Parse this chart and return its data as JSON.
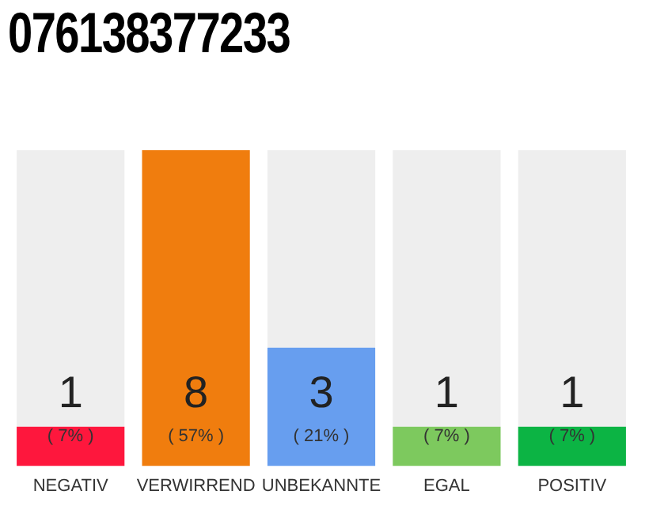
{
  "chart_data": {
    "type": "bar",
    "title": "076138377233",
    "stacked": true,
    "categories": [
      "NEGATIV",
      "VERWIRREND",
      "UNBEKANNTE",
      "EGAL",
      "POSITIV"
    ],
    "series": [
      {
        "colors": [
          "#fe173d",
          "#f07d0e",
          "#679eef",
          "#7dc95e",
          "#0cb444"
        ],
        "values": [
          1,
          8,
          3,
          1,
          1
        ],
        "value_labels": [
          "1",
          "8",
          "3",
          "1",
          "1"
        ]
      },
      {
        "color": "#eeeeee",
        "values": [
          7,
          0,
          5,
          7,
          7
        ]
      }
    ],
    "annotations": [
      "( 7% )",
      "( 57% )",
      "( 21% )",
      "( 7% )",
      "( 7% )"
    ],
    "grid": false,
    "legend": false
  }
}
